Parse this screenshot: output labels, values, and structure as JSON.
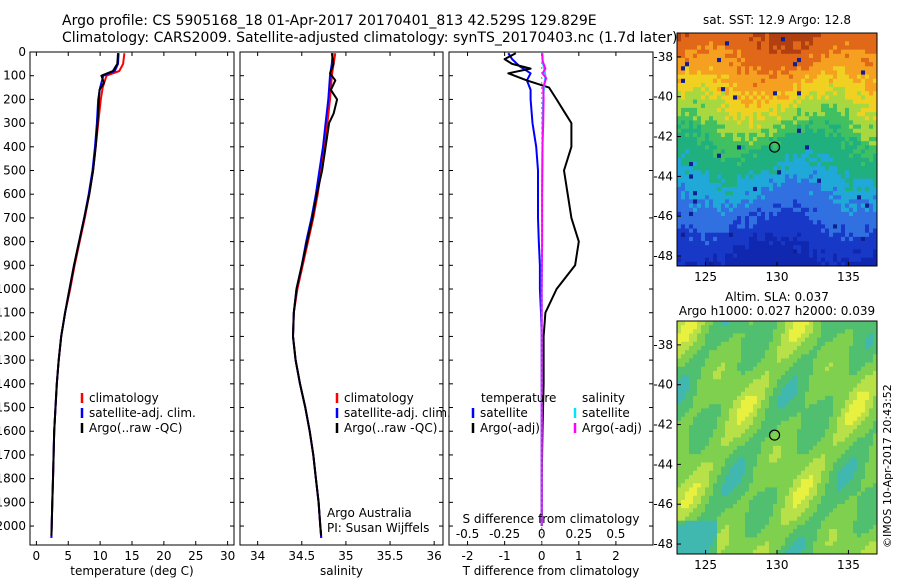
{
  "title": {
    "line1": "Argo profile: CS 5905168_18 01-Apr-2017 20170401_813 42.529S 129.829E",
    "line2": "Climatology: CARS2009. Satellite-adjusted climatology: synTS_20170403.nc (1.7d later)"
  },
  "stamp": "©IMOS 10-Apr-2017 20:43:52",
  "colors": {
    "climatology": "#ff0000",
    "satellite": "#0000ff",
    "argo": "#000000",
    "salinity_satellite": "#00e5ff",
    "salinity_argo": "#ff00ff"
  },
  "chart_data": [
    {
      "id": "temperature",
      "type": "line",
      "xlabel": "temperature (deg C)",
      "xlim": [
        -1,
        31
      ],
      "xticks": [
        0,
        5,
        10,
        15,
        20,
        25,
        30
      ],
      "xticklabels": [
        "0",
        "5",
        "10",
        "15",
        "20",
        "25",
        "30"
      ],
      "ylim": [
        2080,
        0
      ],
      "yticks": [
        0,
        100,
        200,
        300,
        400,
        500,
        600,
        700,
        800,
        900,
        1000,
        1100,
        1200,
        1300,
        1400,
        1500,
        1600,
        1700,
        1800,
        1900,
        2000
      ],
      "legend": [
        "climatology",
        "satellite-adj. clim.",
        "Argo(..raw -QC)"
      ],
      "series": [
        {
          "name": "climatology",
          "color": "#ff0000",
          "depth": [
            5,
            50,
            80,
            100,
            150,
            200,
            300,
            400,
            500,
            600,
            700,
            800,
            900,
            1000,
            1100,
            1200,
            1300,
            1400,
            1500,
            1600,
            1700,
            1800,
            1900,
            2000,
            2050
          ],
          "values": [
            13.8,
            13.6,
            13.0,
            11.0,
            10.4,
            10.1,
            9.7,
            9.3,
            8.9,
            8.3,
            7.6,
            6.8,
            6.0,
            5.3,
            4.5,
            3.9,
            3.5,
            3.2,
            3.0,
            2.8,
            2.7,
            2.6,
            2.5,
            2.4,
            2.35
          ]
        },
        {
          "name": "satellite-adj. clim.",
          "color": "#0000ff",
          "depth": [
            5,
            50,
            80,
            100,
            150,
            200,
            300,
            400,
            500,
            600,
            700,
            800,
            900,
            1000,
            1100,
            1200,
            1300,
            1400,
            1500,
            1600,
            1700,
            1800,
            1900,
            2000,
            2050
          ],
          "values": [
            12.9,
            12.8,
            12.3,
            10.5,
            10.0,
            9.7,
            9.5,
            9.2,
            8.8,
            8.2,
            7.5,
            6.7,
            5.9,
            5.2,
            4.5,
            3.9,
            3.5,
            3.2,
            3.0,
            2.8,
            2.7,
            2.6,
            2.5,
            2.4,
            2.35
          ]
        },
        {
          "name": "Argo(..raw -QC)",
          "color": "#000000",
          "depth": [
            5,
            50,
            80,
            100,
            130,
            160,
            200,
            300,
            400,
            500,
            600,
            700,
            800,
            900,
            1000,
            1100,
            1200,
            1300,
            1400,
            1500,
            1600,
            1700,
            1800,
            1900,
            2000,
            2040
          ],
          "values": [
            12.8,
            12.7,
            12.0,
            10.2,
            10.6,
            9.9,
            9.8,
            9.6,
            9.3,
            8.9,
            8.3,
            7.5,
            6.7,
            5.9,
            5.2,
            4.5,
            3.9,
            3.5,
            3.2,
            3.0,
            2.8,
            2.7,
            2.6,
            2.5,
            2.4,
            2.35
          ]
        }
      ]
    },
    {
      "id": "salinity",
      "type": "line",
      "xlabel": "salinity",
      "xlim": [
        33.8,
        36.1
      ],
      "xticks": [
        34,
        34.5,
        35,
        35.5,
        36
      ],
      "xticklabels": [
        "34",
        "34.5",
        "35",
        "35.5",
        "36"
      ],
      "ylim": [
        2080,
        0
      ],
      "legend": [
        "climatology",
        "satellite-adj. clim.",
        "Argo(..raw -QC)"
      ],
      "annotation": [
        "Argo Australia",
        "PI: Susan Wijffels"
      ],
      "series": [
        {
          "name": "climatology",
          "color": "#ff0000",
          "depth": [
            5,
            50,
            100,
            200,
            300,
            400,
            500,
            600,
            700,
            800,
            900,
            1000,
            1100,
            1200,
            1300,
            1400,
            1500,
            1600,
            1700,
            1800,
            1900,
            2000,
            2050
          ],
          "values": [
            34.88,
            34.86,
            34.84,
            34.82,
            34.79,
            34.76,
            34.72,
            34.68,
            34.63,
            34.57,
            34.51,
            34.45,
            34.41,
            34.4,
            34.43,
            34.48,
            34.54,
            34.59,
            34.63,
            34.66,
            34.69,
            34.71,
            34.72
          ]
        },
        {
          "name": "satellite-adj. clim.",
          "color": "#0000ff",
          "depth": [
            5,
            50,
            100,
            200,
            300,
            400,
            500,
            600,
            700,
            800,
            900,
            1000,
            1100,
            1200,
            1300,
            1400,
            1500,
            1600,
            1700,
            1800,
            1900,
            2000,
            2050
          ],
          "values": [
            34.85,
            34.84,
            34.82,
            34.8,
            34.77,
            34.74,
            34.7,
            34.66,
            34.61,
            34.55,
            34.5,
            34.44,
            34.41,
            34.4,
            34.43,
            34.48,
            34.54,
            34.59,
            34.63,
            34.66,
            34.69,
            34.71,
            34.72
          ]
        },
        {
          "name": "Argo(..raw -QC)",
          "color": "#000000",
          "depth": [
            5,
            50,
            90,
            120,
            160,
            200,
            260,
            300,
            400,
            500,
            600,
            700,
            800,
            900,
            1000,
            1100,
            1200,
            1300,
            1400,
            1500,
            1600,
            1700,
            1800,
            1900,
            2000,
            2040
          ],
          "values": [
            34.84,
            34.86,
            34.82,
            34.88,
            34.83,
            34.9,
            34.86,
            34.81,
            34.77,
            34.73,
            34.67,
            34.62,
            34.56,
            34.5,
            34.44,
            34.41,
            34.4,
            34.43,
            34.48,
            34.54,
            34.59,
            34.63,
            34.66,
            34.69,
            34.71,
            34.72
          ]
        }
      ]
    },
    {
      "id": "difference",
      "type": "line",
      "xlabel": "T difference from climatology",
      "xlabel_top": "S difference from climatology",
      "xlim": [
        -2.5,
        3.0
      ],
      "xticks": [
        -2,
        -1,
        0,
        1,
        2
      ],
      "xticklabels": [
        "-2",
        "-1",
        "0",
        "1",
        "2"
      ],
      "sticks": [
        -0.5,
        -0.25,
        0,
        0.25,
        0.5
      ],
      "sticklabels": [
        "-0.5",
        "-0.25",
        "0",
        "0.25",
        "0.5"
      ],
      "ylim": [
        2080,
        0
      ],
      "legend_headers": [
        "temperature",
        "salinity"
      ],
      "legend": [
        "satellite",
        "Argo(-adj)",
        "satellite",
        "Argo(-adj)"
      ],
      "series": [
        {
          "name": "temperature satellite",
          "color": "#0000ff",
          "depth": [
            5,
            30,
            60,
            90,
            120,
            160,
            200,
            300,
            400,
            500,
            600,
            700,
            800,
            900,
            1000,
            1100,
            1200,
            1400,
            1600,
            1800,
            2000
          ],
          "values": [
            -0.9,
            -0.8,
            -0.6,
            -0.3,
            -0.4,
            -0.3,
            -0.3,
            -0.25,
            -0.15,
            -0.1,
            -0.1,
            -0.1,
            -0.08,
            -0.05,
            -0.05,
            -0.02,
            0,
            0,
            0,
            0,
            0
          ]
        },
        {
          "name": "temperature Argo(-adj)",
          "color": "#000000",
          "depth": [
            5,
            30,
            50,
            70,
            90,
            120,
            150,
            200,
            250,
            300,
            400,
            500,
            600,
            700,
            800,
            900,
            1000,
            1100,
            1200,
            1400,
            1600,
            1800,
            2000
          ],
          "values": [
            -0.7,
            -1.0,
            -0.8,
            -0.3,
            -0.9,
            -0.4,
            0.2,
            0.4,
            0.6,
            0.8,
            0.8,
            0.6,
            0.7,
            0.8,
            1.0,
            0.9,
            0.4,
            0.1,
            0.05,
            0.05,
            0.02,
            0,
            0
          ]
        },
        {
          "name": "salinity satellite",
          "color": "#00e5ff",
          "depth": [
            5,
            40,
            80,
            100,
            150,
            200,
            300,
            400,
            600,
            800,
            1000,
            1200,
            1400,
            1600,
            1800,
            2000
          ],
          "values": [
            0.02,
            0.02,
            0.08,
            0.1,
            0.06,
            0.04,
            0.02,
            0.02,
            0.01,
            0.01,
            0,
            0,
            0,
            0,
            0,
            0
          ]
        },
        {
          "name": "salinity Argo(-adj)",
          "color": "#ff00ff",
          "depth": [
            5,
            40,
            70,
            90,
            110,
            150,
            200,
            300,
            400,
            600,
            800,
            1000,
            1200,
            1400,
            1600,
            1800,
            2000
          ],
          "values": [
            0.01,
            0.03,
            0.1,
            0.02,
            0.12,
            0.04,
            0.05,
            0.04,
            0.02,
            0.01,
            0.01,
            0,
            0,
            0,
            0,
            0,
            0
          ]
        }
      ]
    },
    {
      "id": "sst_map",
      "type": "heatmap",
      "title": "sat. SST: 12.9 Argo: 12.8",
      "xticks": [
        125,
        130,
        135
      ],
      "yticks": [
        -38,
        -40,
        -42,
        -44,
        -46,
        -48
      ],
      "xlim": [
        123,
        137
      ],
      "ylim": [
        -48.5,
        -36.8
      ],
      "float_position": [
        129.829,
        -42.529
      ]
    },
    {
      "id": "sla_map",
      "type": "heatmap",
      "title_line1": "Altim. SLA: 0.037",
      "title_line2": "Argo h1000: 0.027 h2000: 0.039",
      "xticks": [
        125,
        130,
        135
      ],
      "yticks": [
        -38,
        -40,
        -42,
        -44,
        -46,
        -48
      ],
      "xlim": [
        123,
        137
      ],
      "ylim": [
        -48.5,
        -36.8
      ],
      "float_position": [
        129.829,
        -42.529
      ]
    }
  ]
}
